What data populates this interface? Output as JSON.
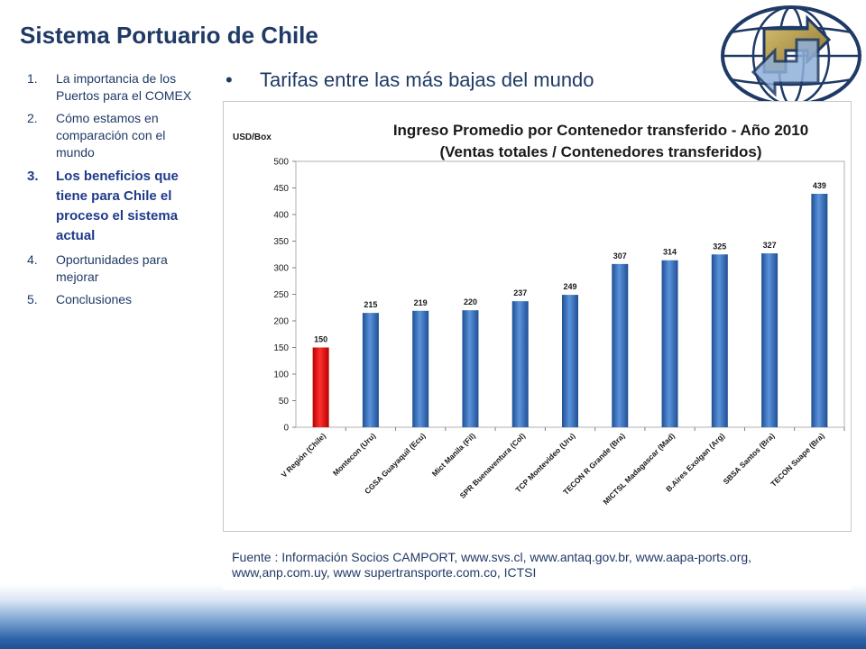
{
  "slide": {
    "title": "Sistema Portuario de Chile",
    "bullet": "Tarifas entre las más bajas del mundo",
    "source": "Fuente : Información Socios CAMPORT, www.svs.cl, www.antaq.gov.br, www.aapa-ports.org, www,anp.com.uy, www supertransporte.com.co, ICTSI"
  },
  "agenda": [
    {
      "num": "1.",
      "label": "La importancia de los Puertos para el COMEX",
      "active": false
    },
    {
      "num": "2.",
      "label": "Cómo estamos en comparación con el mundo",
      "active": false
    },
    {
      "num": "3.",
      "label": "Los beneficios que tiene para Chile el proceso el sistema actual",
      "active": true
    },
    {
      "num": "4.",
      "label": "Oportunidades para mejorar",
      "active": false
    },
    {
      "num": "5.",
      "label": "Conclusiones",
      "active": false
    }
  ],
  "colors": {
    "highlight_bar": "#e02020",
    "bar": "#2f6cbf",
    "title_text": "#1f3a66"
  },
  "chart_data": {
    "type": "bar",
    "title": "Ingreso Promedio por Contenedor transferido - Año 2010",
    "subtitle": "(Ventas totales / Contenedores transferidos)",
    "ylabel": "USD/Box",
    "xlabel": "",
    "ylim": [
      0,
      500
    ],
    "yticks": [
      0,
      50,
      100,
      150,
      200,
      250,
      300,
      350,
      400,
      450,
      500
    ],
    "grid": false,
    "categories": [
      "V Región (Chile)",
      "Montecon (Uru)",
      "CGSA Guayaquil (Ecu)",
      "Mict Manila (Fil)",
      "SPR Buenaventura (Col)",
      "TCP Montevideo (Uru)",
      "TECON R Grande (Bra)",
      "MICTSL Madagascar (Mad)",
      "B.Aires Exolgan (Arg)",
      "SBSA Santos (Bra)",
      "TECON Suape (Bra)"
    ],
    "values": [
      150,
      215,
      219,
      220,
      237,
      249,
      307,
      314,
      325,
      327,
      439
    ],
    "highlight_index": 0
  }
}
